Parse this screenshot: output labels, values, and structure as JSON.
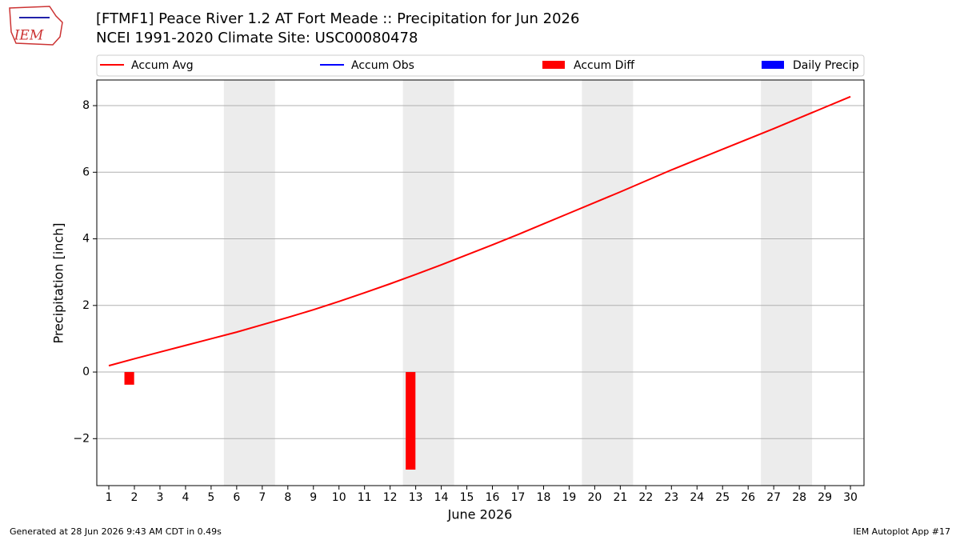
{
  "logo": "IEM",
  "chart_data": {
    "type": "line",
    "title": "[FTMF1] Peace River 1.2 AT Fort Meade :: Precipitation for Jun 2026",
    "subtitle": "NCEI 1991-2020 Climate Site: USC00080478",
    "xlabel": "June 2026",
    "ylabel": "Precipitation [inch]",
    "x": [
      1,
      2,
      3,
      4,
      5,
      6,
      7,
      8,
      9,
      10,
      11,
      12,
      13,
      14,
      15,
      16,
      17,
      18,
      19,
      20,
      21,
      22,
      23,
      24,
      25,
      26,
      27,
      28,
      29,
      30
    ],
    "series": [
      {
        "name": "Accum Avg",
        "color": "#ff0000",
        "kind": "line",
        "values": [
          0.19,
          0.4,
          0.6,
          0.8,
          1.0,
          1.2,
          1.42,
          1.64,
          1.87,
          2.12,
          2.38,
          2.65,
          2.93,
          3.22,
          3.52,
          3.82,
          4.13,
          4.45,
          4.77,
          5.09,
          5.41,
          5.74,
          6.07,
          6.38,
          6.69,
          7.0,
          7.31,
          7.63,
          7.95,
          8.27
        ]
      },
      {
        "name": "Accum Obs",
        "color": "#0000ff",
        "kind": "line",
        "values": [
          null,
          null,
          null,
          null,
          null,
          null,
          null,
          null,
          null,
          null,
          null,
          null,
          null,
          null,
          null,
          null,
          null,
          null,
          null,
          null,
          null,
          null,
          null,
          null,
          null,
          null,
          null,
          null,
          null,
          null
        ]
      },
      {
        "name": "Accum Diff",
        "color": "#ff0000",
        "kind": "bar",
        "values": [
          null,
          -0.38,
          null,
          null,
          null,
          null,
          null,
          null,
          null,
          null,
          null,
          null,
          -2.93,
          null,
          null,
          null,
          null,
          null,
          null,
          null,
          null,
          null,
          null,
          null,
          null,
          null,
          null,
          null,
          null,
          null
        ]
      },
      {
        "name": "Daily Precip",
        "color": "#0000ff",
        "kind": "bar",
        "values": [
          null,
          null,
          null,
          null,
          null,
          null,
          null,
          null,
          null,
          null,
          null,
          null,
          null,
          null,
          null,
          null,
          null,
          null,
          null,
          null,
          null,
          null,
          null,
          null,
          null,
          null,
          null,
          null,
          null,
          null
        ]
      }
    ],
    "weekend_spans": [
      [
        5.5,
        7.5
      ],
      [
        12.5,
        14.5
      ],
      [
        19.5,
        21.5
      ],
      [
        26.5,
        28.5
      ]
    ],
    "xlim": [
      0.53,
      30.53
    ],
    "xticks": [
      1,
      2,
      3,
      4,
      5,
      6,
      7,
      8,
      9,
      10,
      11,
      12,
      13,
      14,
      15,
      16,
      17,
      18,
      19,
      20,
      21,
      22,
      23,
      24,
      25,
      26,
      27,
      28,
      29,
      30
    ],
    "ylim": [
      -3.41,
      8.77
    ],
    "yticks": [
      {
        "value": -2,
        "label": "−2"
      },
      0,
      2,
      4,
      6,
      8
    ],
    "grid": true,
    "legend": "top"
  },
  "footer": {
    "left": "Generated at 28 Jun 2026 9:43 AM CDT in 0.49s",
    "right": "IEM Autoplot App #17"
  }
}
